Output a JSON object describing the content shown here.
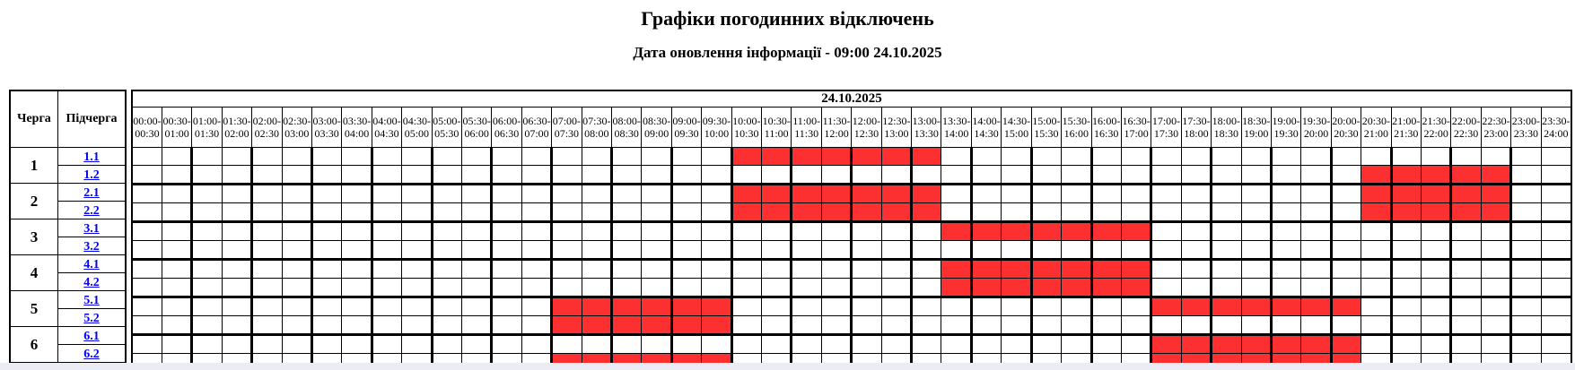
{
  "page": {
    "title": "Графіки погодинних відключень",
    "subtitle": "Дата оновлення інформації - 09:00 24.10.2025"
  },
  "colors": {
    "outage": "#fc3030",
    "grid": "#000000",
    "link": "#0000ee"
  },
  "schedule": {
    "date_header": "24.10.2025",
    "queue_column_label": "Черга",
    "subqueue_column_label": "Підчерга",
    "time_boundaries": [
      "00:00",
      "00:30",
      "01:00",
      "01:30",
      "02:00",
      "02:30",
      "03:00",
      "03:30",
      "04:00",
      "04:30",
      "05:00",
      "05:30",
      "06:00",
      "06:30",
      "07:00",
      "07:30",
      "08:00",
      "08:30",
      "09:00",
      "09:30",
      "10:00",
      "10:30",
      "11:00",
      "11:30",
      "12:00",
      "12:30",
      "13:00",
      "13:30",
      "14:00",
      "14:30",
      "15:00",
      "15:30",
      "16:00",
      "16:30",
      "17:00",
      "17:30",
      "18:00",
      "18:30",
      "19:00",
      "19:30",
      "20:00",
      "20:30",
      "21:00",
      "21:30",
      "22:00",
      "22:30",
      "23:00",
      "23:30",
      "24:00"
    ],
    "rows": [
      {
        "queue": "1",
        "subqueue": "1.1",
        "outages": [
          {
            "from": "10:00",
            "to": "13:30"
          }
        ]
      },
      {
        "queue": "1",
        "subqueue": "1.2",
        "outages": [
          {
            "from": "20:30",
            "to": "23:00"
          }
        ]
      },
      {
        "queue": "2",
        "subqueue": "2.1",
        "outages": [
          {
            "from": "10:00",
            "to": "13:30"
          },
          {
            "from": "20:30",
            "to": "23:00"
          }
        ]
      },
      {
        "queue": "2",
        "subqueue": "2.2",
        "outages": [
          {
            "from": "10:00",
            "to": "13:30"
          },
          {
            "from": "20:30",
            "to": "23:00"
          }
        ]
      },
      {
        "queue": "3",
        "subqueue": "3.1",
        "outages": [
          {
            "from": "13:30",
            "to": "17:00"
          }
        ]
      },
      {
        "queue": "3",
        "subqueue": "3.2",
        "outages": []
      },
      {
        "queue": "4",
        "subqueue": "4.1",
        "outages": [
          {
            "from": "13:30",
            "to": "17:00"
          }
        ]
      },
      {
        "queue": "4",
        "subqueue": "4.2",
        "outages": [
          {
            "from": "13:30",
            "to": "17:00"
          }
        ]
      },
      {
        "queue": "5",
        "subqueue": "5.1",
        "outages": [
          {
            "from": "07:00",
            "to": "10:00"
          },
          {
            "from": "17:00",
            "to": "20:30"
          }
        ]
      },
      {
        "queue": "5",
        "subqueue": "5.2",
        "outages": [
          {
            "from": "07:00",
            "to": "10:00"
          }
        ]
      },
      {
        "queue": "6",
        "subqueue": "6.1",
        "outages": [
          {
            "from": "17:00",
            "to": "20:30"
          }
        ]
      },
      {
        "queue": "6",
        "subqueue": "6.2",
        "outages": [
          {
            "from": "07:00",
            "to": "10:00"
          },
          {
            "from": "17:00",
            "to": "20:30"
          }
        ]
      }
    ]
  }
}
